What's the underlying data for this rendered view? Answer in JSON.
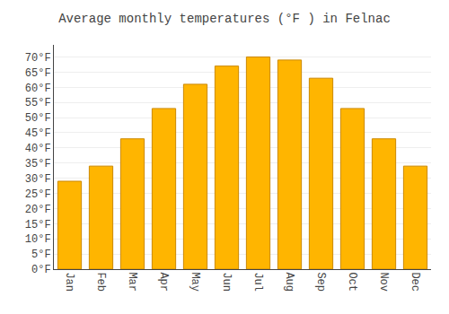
{
  "chart_data": {
    "type": "bar",
    "title": "Average monthly temperatures (°F ) in Felnac",
    "categories": [
      "Jan",
      "Feb",
      "Mar",
      "Apr",
      "May",
      "Jun",
      "Jul",
      "Aug",
      "Sep",
      "Oct",
      "Nov",
      "Dec"
    ],
    "values": [
      29,
      34,
      43,
      53,
      61,
      67,
      70,
      69,
      63,
      53,
      43,
      34
    ],
    "color": "#FFB500",
    "ylim": [
      0,
      74
    ],
    "yticks": [
      {
        "value": 0,
        "label": "0°F"
      },
      {
        "value": 5,
        "label": "5°F"
      },
      {
        "value": 10,
        "label": "10°F"
      },
      {
        "value": 15,
        "label": "15°F"
      },
      {
        "value": 20,
        "label": "20°F"
      },
      {
        "value": 25,
        "label": "25°F"
      },
      {
        "value": 30,
        "label": "30°F"
      },
      {
        "value": 35,
        "label": "35°F"
      },
      {
        "value": 40,
        "label": "40°F"
      },
      {
        "value": 45,
        "label": "45°F"
      },
      {
        "value": 50,
        "label": "50°F"
      },
      {
        "value": 55,
        "label": "55°F"
      },
      {
        "value": 60,
        "label": "60°F"
      },
      {
        "value": 65,
        "label": "65°F"
      },
      {
        "value": 70,
        "label": "70°F"
      }
    ],
    "grid": true
  }
}
